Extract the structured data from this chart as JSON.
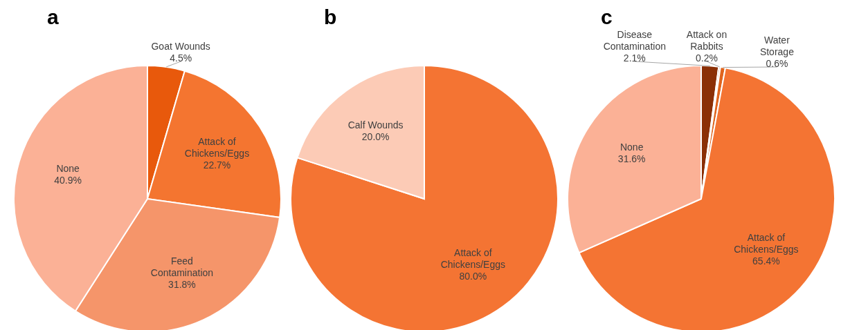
{
  "chart_data": [
    {
      "type": "pie",
      "title": "a",
      "categories": [
        "Goat Wounds",
        "Attack of Chickens/Eggs",
        "Feed Contamination",
        "None"
      ],
      "values": [
        4.5,
        22.7,
        31.8,
        40.9
      ],
      "value_labels": [
        "4.5%",
        "22.7%",
        "31.8%",
        "40.9%"
      ],
      "colors": [
        "#e8590c",
        "#f47530",
        "#f5956a",
        "#fbb196"
      ]
    },
    {
      "type": "pie",
      "title": "b",
      "categories": [
        "Attack of Chickens/Eggs",
        "Calf Wounds"
      ],
      "values": [
        80.0,
        20.0
      ],
      "value_labels": [
        "80.0%",
        "20.0%"
      ],
      "colors": [
        "#f47433",
        "#fccbb6"
      ]
    },
    {
      "type": "pie",
      "title": "c",
      "categories": [
        "Disease Contamination",
        "Attack on Rabbits",
        "Water Storage",
        "Attack of Chickens/Eggs",
        "None"
      ],
      "values": [
        2.1,
        0.2,
        0.6,
        65.4,
        31.6
      ],
      "value_labels": [
        "2.1%",
        "0.2%",
        "0.6%",
        "65.4%",
        "31.6%"
      ],
      "colors": [
        "#8b2f05",
        "#c24a10",
        "#e0651e",
        "#f47433",
        "#fbb196"
      ]
    }
  ]
}
